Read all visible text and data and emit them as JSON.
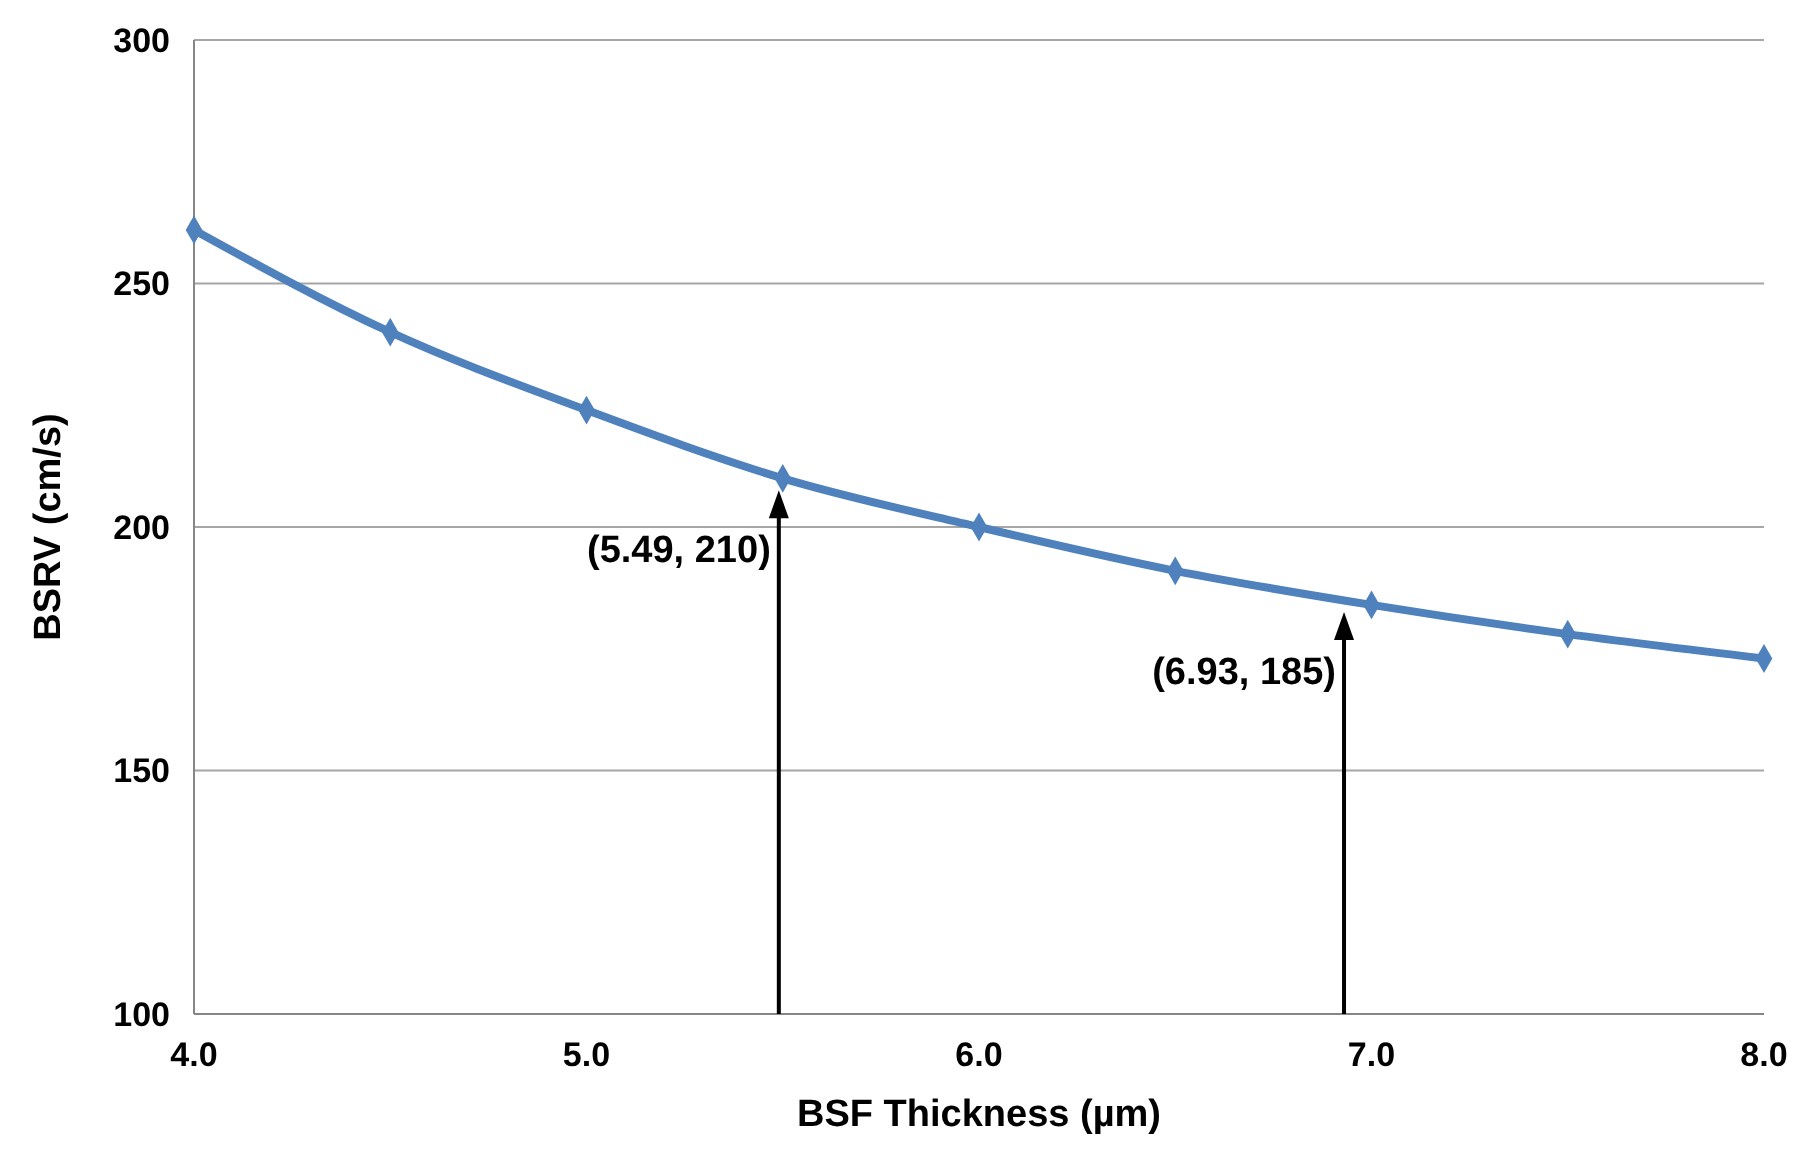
{
  "chart_data": {
    "type": "line",
    "xlabel": "BSF Thickness (µm)",
    "ylabel": "BSRV (cm/s)",
    "x": [
      4.0,
      4.5,
      5.0,
      5.5,
      6.0,
      6.5,
      7.0,
      7.5,
      8.0
    ],
    "series": [
      {
        "color": "#4f81bd",
        "values": [
          261,
          240,
          224,
          210,
          200,
          191,
          184,
          178,
          173
        ]
      }
    ],
    "xlim": [
      4.0,
      8.0
    ],
    "xticks": [
      {
        "value": 4,
        "label": "4.0"
      },
      {
        "value": 5,
        "label": "5.0"
      },
      {
        "value": 6,
        "label": "6.0"
      },
      {
        "value": 7,
        "label": "7.0"
      },
      {
        "value": 8,
        "label": "8.0"
      }
    ],
    "ylim": [
      100,
      300
    ],
    "yticks": [
      100,
      150,
      200,
      250,
      300
    ],
    "grid": "y",
    "marker": "diamond",
    "line_style": "solid",
    "annotations": [
      {
        "text": "(5.49, 210)",
        "x": 5.49,
        "y": 210
      },
      {
        "text": "(6.93, 185)",
        "x": 6.93,
        "y": 185
      }
    ]
  }
}
